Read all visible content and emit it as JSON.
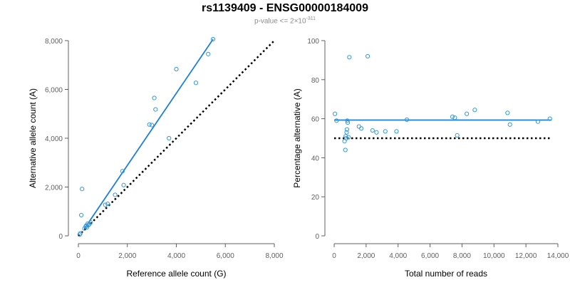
{
  "figure": {
    "title": "rs1139409 - ENSG00000184009",
    "subtitle_prefix": "p-value <= 2×10",
    "subtitle_exponent": "-311"
  },
  "colors": {
    "point": "#3399dd",
    "fit_line": "#1a7fe0",
    "reference_line": "#000000",
    "axis": "#606060"
  },
  "chart_data": [
    {
      "type": "scatter",
      "xlabel": "Reference allele count (G)",
      "ylabel": "Alternative allele count (A)",
      "xlim": [
        0,
        8000
      ],
      "ylim": [
        0,
        8000
      ],
      "xticks": [
        0,
        2000,
        4000,
        6000,
        8000
      ],
      "yticks": [
        0,
        2000,
        4000,
        6000,
        8000
      ],
      "xtick_labels": [
        "0",
        "2,000",
        "4,000",
        "6,000",
        "8,000"
      ],
      "ytick_labels": [
        "0",
        "2,000",
        "4,000",
        "6,000",
        "8,000"
      ],
      "points": [
        [
          50,
          50
        ],
        [
          80,
          100
        ],
        [
          120,
          850
        ],
        [
          150,
          1920
        ],
        [
          250,
          300
        ],
        [
          300,
          380
        ],
        [
          320,
          420
        ],
        [
          350,
          350
        ],
        [
          380,
          500
        ],
        [
          420,
          450
        ],
        [
          450,
          480
        ],
        [
          500,
          550
        ],
        [
          1100,
          1270
        ],
        [
          1200,
          1310
        ],
        [
          1500,
          1680
        ],
        [
          1800,
          2650
        ],
        [
          1850,
          2080
        ],
        [
          2900,
          4560
        ],
        [
          3000,
          4540
        ],
        [
          3100,
          5650
        ],
        [
          3150,
          5180
        ],
        [
          3700,
          4000
        ],
        [
          4000,
          6830
        ],
        [
          4800,
          6270
        ],
        [
          5300,
          7450
        ],
        [
          5500,
          8060
        ]
      ],
      "fit_line": [
        [
          250,
          300
        ],
        [
          5500,
          8060
        ]
      ],
      "reference_line": [
        [
          0,
          0
        ],
        [
          8000,
          8000
        ]
      ]
    },
    {
      "type": "scatter",
      "xlabel": "Total number of reads",
      "ylabel": "Percentage alternative (A)",
      "xlim": [
        0,
        14000
      ],
      "ylim": [
        0,
        100
      ],
      "xticks": [
        0,
        2000,
        4000,
        6000,
        8000,
        10000,
        12000,
        14000
      ],
      "yticks": [
        0,
        20,
        40,
        60,
        80,
        100
      ],
      "xtick_labels": [
        "0",
        "2,000",
        "4,000",
        "6,000",
        "8,000",
        "10,000",
        "12,000",
        "14,000"
      ],
      "ytick_labels": [
        "0",
        "20",
        "40",
        "60",
        "80",
        "100"
      ],
      "points": [
        [
          50,
          62.5
        ],
        [
          150,
          59
        ],
        [
          650,
          48.5
        ],
        [
          700,
          44
        ],
        [
          720,
          51
        ],
        [
          750,
          50
        ],
        [
          780,
          53
        ],
        [
          800,
          54.5
        ],
        [
          820,
          59
        ],
        [
          850,
          58
        ],
        [
          900,
          50.5
        ],
        [
          950,
          91.5
        ],
        [
          1550,
          56
        ],
        [
          1700,
          55
        ],
        [
          2100,
          92
        ],
        [
          2400,
          54
        ],
        [
          2650,
          53
        ],
        [
          3200,
          53.5
        ],
        [
          3900,
          53.5
        ],
        [
          4550,
          59.5
        ],
        [
          7400,
          61
        ],
        [
          7550,
          60.5
        ],
        [
          7700,
          51.5
        ],
        [
          8300,
          62.5
        ],
        [
          8800,
          64.5
        ],
        [
          10850,
          63
        ],
        [
          11000,
          57
        ],
        [
          12750,
          58.5
        ],
        [
          13500,
          60
        ]
      ],
      "fit_line": [
        [
          0,
          59.3
        ],
        [
          13600,
          59.3
        ]
      ],
      "reference_line": [
        [
          0,
          50
        ],
        [
          13600,
          50
        ]
      ]
    }
  ]
}
